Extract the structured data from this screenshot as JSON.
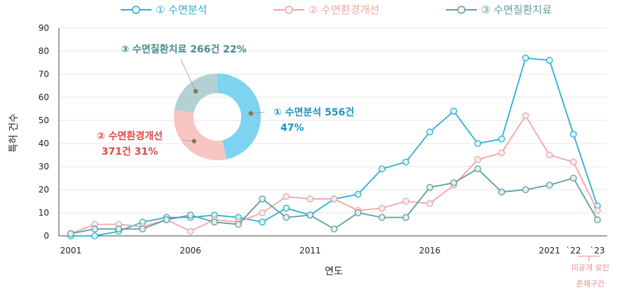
{
  "chart_data": {
    "type": "line",
    "x": [
      "2001",
      "2002",
      "2003",
      "2004",
      "2005",
      "2006",
      "2007",
      "2008",
      "2009",
      "2010",
      "2011",
      "2012",
      "2013",
      "2014",
      "2015",
      "2016",
      "2017",
      "2018",
      "2019",
      "2020",
      "2021",
      "2022",
      "2023"
    ],
    "x_tick_labels": [
      "2001",
      "2006",
      "2011",
      "2016",
      "2021",
      "`22",
      "`23"
    ],
    "x_tick_years": [
      "2001",
      "2006",
      "2011",
      "2016",
      "2021",
      "2022",
      "2023"
    ],
    "xlabel": "연도",
    "ylabel": "특허 건수",
    "ylim": [
      0,
      90
    ],
    "yticks": [
      0,
      10,
      20,
      30,
      40,
      50,
      60,
      70,
      80,
      90
    ],
    "grid": true,
    "legend_position": "top",
    "series": [
      {
        "name": "① 수면분석",
        "color": "#2ab0d4",
        "values": [
          0,
          0,
          2,
          6,
          8,
          8,
          9,
          8,
          6,
          12,
          9,
          16,
          18,
          29,
          32,
          45,
          54,
          40,
          42,
          77,
          76,
          44,
          13
        ]
      },
      {
        "name": "② 수면환경개선",
        "color": "#f4a5a2",
        "values": [
          1,
          5,
          5,
          4,
          7,
          2,
          7,
          6,
          10,
          17,
          16,
          16,
          11,
          12,
          15,
          14,
          22,
          33,
          36,
          52,
          35,
          32,
          11
        ]
      },
      {
        "name": "③ 수면질환치료",
        "color": "#5f9ea0",
        "values": [
          1,
          3,
          3,
          3,
          7,
          9,
          6,
          5,
          16,
          8,
          9,
          3,
          10,
          8,
          8,
          21,
          23,
          29,
          19,
          20,
          22,
          25,
          7
        ]
      }
    ],
    "annotation": {
      "line1": "미공개 로인",
      "line2": "존재구간"
    },
    "donut": {
      "slices": [
        {
          "name": "① 수면분석",
          "value": 556,
          "percent": 47,
          "color": "#7dd3f0",
          "label_line1": "① 수면분석 556건",
          "label_line2": "47%",
          "label_color": "#1f93c4"
        },
        {
          "name": "② 수면환경개선",
          "value": 371,
          "percent": 31,
          "color": "#f7c6c4",
          "label_line1": "② 수면환경개선",
          "label_line2": "371건 31%",
          "label_color": "#e04848"
        },
        {
          "name": "③ 수면질환치료",
          "value": 266,
          "percent": 22,
          "color": "#b3d1d3",
          "label_line1": "③ 수면질환치료 266건 22%",
          "label_line2": "",
          "label_color": "#4a8c8e"
        }
      ]
    }
  }
}
